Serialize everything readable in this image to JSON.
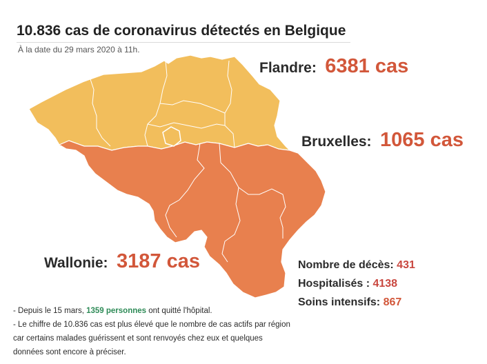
{
  "header": {
    "title": "10.836 cas de coronavirus détectés en Belgique",
    "subtitle": "À la date du 29 mars 2020 à 11h."
  },
  "regions": {
    "flandre": {
      "name": "Flandre:",
      "value": "6381 cas",
      "color": "#f2be5c"
    },
    "bruxelles": {
      "name": "Bruxelles:",
      "value": "1065 cas",
      "color": "#f2be5c"
    },
    "wallonie": {
      "name": "Wallonie:",
      "value": "3187 cas",
      "color": "#e8804e"
    }
  },
  "stats": {
    "deaths": {
      "label": "Nombre de décès:",
      "value": "431"
    },
    "hospitalized": {
      "label": "Hospitalisés :",
      "value": "4138"
    },
    "intensive_care": {
      "label": "Soins intensifs:",
      "value": "867"
    }
  },
  "notes": {
    "line1_prefix": "- Depuis le 15 mars,",
    "line1_highlight": "1359 personnes",
    "line1_suffix": "ont quitté l'hôpital.",
    "line2": "- Le chiffre de 10.836 cas est plus élevé que le nombre de cas actifs par région",
    "line3": "car certains malades guérissent et sont renvoyés chez eux et quelques",
    "line4": "données sont encore à préciser."
  }
}
